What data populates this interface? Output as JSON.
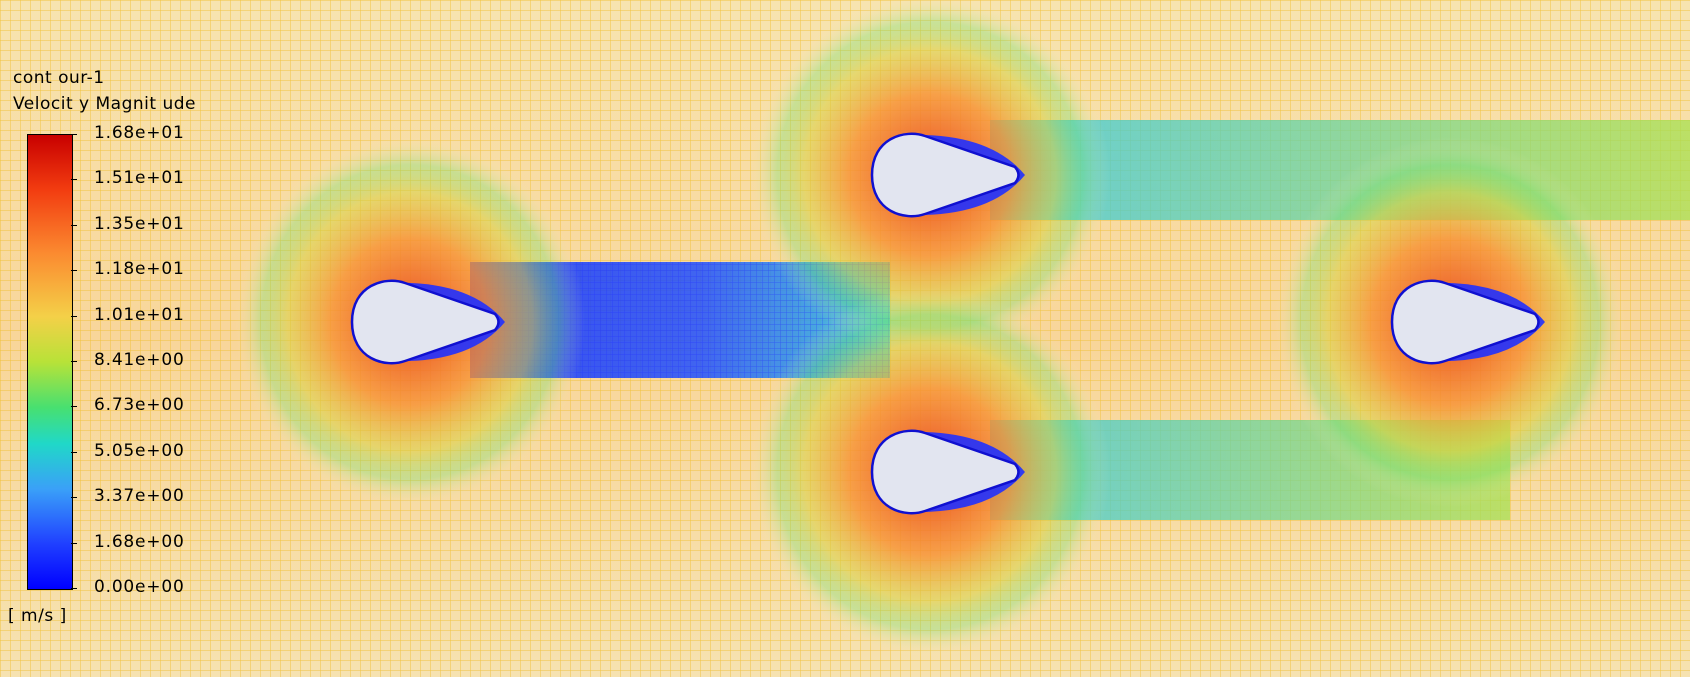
{
  "legend": {
    "name": "cont our-1",
    "quantity": "Velocit y Magnit ude",
    "units": "[ m/s ]",
    "levels": [
      "1.68e+01",
      "1.51e+01",
      "1.35e+01",
      "1.18e+01",
      "1.01e+01",
      "8.41e+00",
      "6.73e+00",
      "5.05e+00",
      "3.37e+00",
      "1.68e+00",
      "0.00e+00"
    ],
    "colormap": [
      "#c80000",
      "#f23c10",
      "#fb8a30",
      "#f4d048",
      "#b8e238",
      "#48e070",
      "#20d8c8",
      "#3aa0f8",
      "#2040ff",
      "#0000ff"
    ]
  },
  "scene": {
    "background_color": "#f6e7c0",
    "mesh_color_far": "#f3c23a",
    "body_fill": "#e2e5f0",
    "body_outline": "#1010d0",
    "bodies": [
      "body-1",
      "body-2",
      "body-3",
      "body-4"
    ]
  }
}
